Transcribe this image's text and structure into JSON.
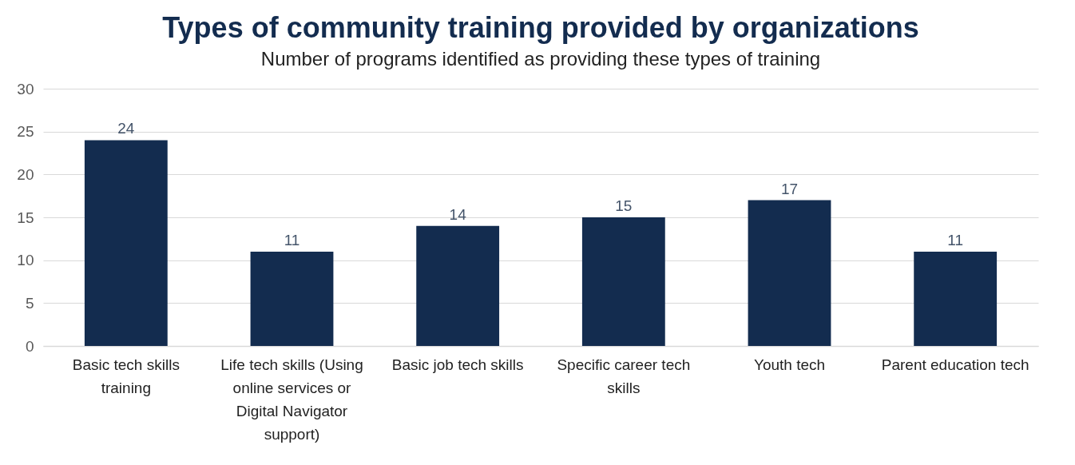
{
  "chart_data": {
    "type": "bar",
    "title": "Types of community training provided by organizations",
    "subtitle": "Number of programs identified as providing these types of training",
    "categories": [
      "Basic tech skills training",
      "Life tech skills (Using online services or Digital Navigator support)",
      "Basic job tech skills",
      "Specific career tech skills",
      "Youth tech",
      "Parent education tech"
    ],
    "values": [
      24,
      11,
      14,
      15,
      17,
      11
    ],
    "color": "#132c4f",
    "ylim": [
      0,
      30
    ],
    "yticks": [
      0,
      5,
      10,
      15,
      20,
      25,
      30
    ],
    "grid": "y",
    "data_labels": true
  }
}
